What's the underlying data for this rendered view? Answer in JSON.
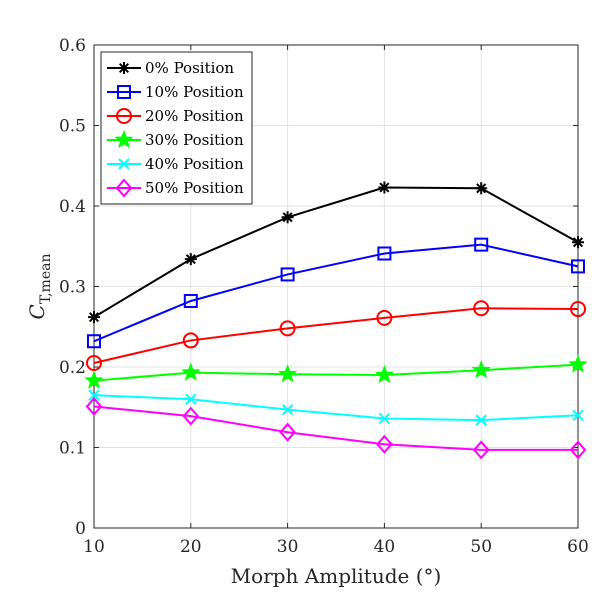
{
  "chart_data": {
    "type": "line",
    "xlabel": "Morph Amplitude (°)",
    "ylabel_main": "C",
    "ylabel_sub": "T,mean",
    "x": [
      10,
      20,
      30,
      40,
      50,
      60
    ],
    "xlim": [
      10,
      60
    ],
    "ylim": [
      0,
      0.6
    ],
    "xticks": [
      "10",
      "20",
      "30",
      "40",
      "50",
      "60"
    ],
    "yticks": [
      "0",
      "0.1",
      "0.2",
      "0.3",
      "0.4",
      "0.5",
      "0.6"
    ],
    "grid": true,
    "legend_position": "top-left",
    "series": [
      {
        "name": "0% Position",
        "color": "#000000",
        "marker": "asterisk",
        "values": [
          0.262,
          0.334,
          0.386,
          0.423,
          0.422,
          0.355
        ]
      },
      {
        "name": "10% Position",
        "color": "#0000ff",
        "marker": "square",
        "values": [
          0.232,
          0.282,
          0.315,
          0.341,
          0.352,
          0.325
        ]
      },
      {
        "name": "20% Position",
        "color": "#ff0000",
        "marker": "circle",
        "values": [
          0.205,
          0.233,
          0.248,
          0.261,
          0.273,
          0.272
        ]
      },
      {
        "name": "30% Position",
        "color": "#00ff00",
        "marker": "star",
        "values": [
          0.183,
          0.193,
          0.191,
          0.19,
          0.196,
          0.203
        ]
      },
      {
        "name": "40% Position",
        "color": "#00ffff",
        "marker": "x",
        "values": [
          0.165,
          0.16,
          0.147,
          0.136,
          0.134,
          0.14
        ]
      },
      {
        "name": "50% Position",
        "color": "#ff00ff",
        "marker": "diamond",
        "values": [
          0.151,
          0.139,
          0.119,
          0.104,
          0.097,
          0.097
        ]
      }
    ]
  }
}
